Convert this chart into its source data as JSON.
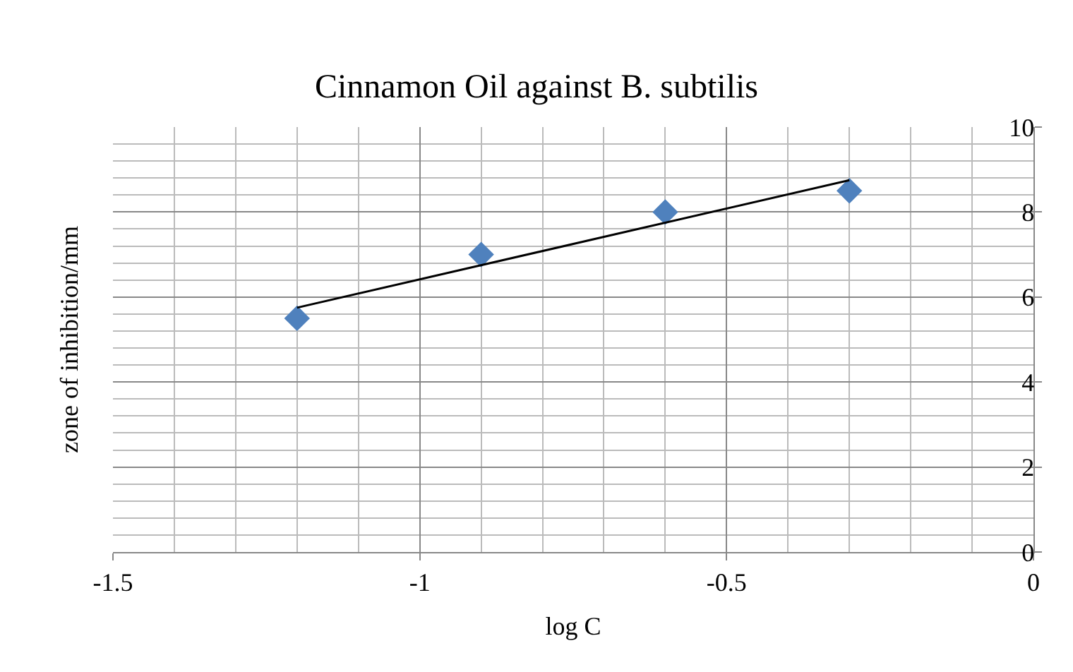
{
  "chart_data": {
    "type": "scatter",
    "title": "Cinnamon Oil against B. subtilis",
    "xlabel": "log C",
    "ylabel": "zone of inhibition/mm",
    "x": [
      -1.2,
      -0.9,
      -0.6,
      -0.3
    ],
    "series": [
      {
        "color": "#4f81bd",
        "values": [
          5.5,
          7,
          8,
          8.5
        ],
        "marker": "diamond"
      },
      {
        "type": "line",
        "color": "#000000",
        "x": [
          -1.2,
          -0.3
        ],
        "values": [
          5.75,
          8.75
        ],
        "marker": "none",
        "line_style": "solid"
      }
    ],
    "xlim": [
      -1.5,
      0
    ],
    "xticks": [
      -1.5,
      -1,
      -0.5,
      0
    ],
    "ylim": [
      0,
      10
    ],
    "yticks": [
      0,
      2,
      4,
      6,
      8,
      10
    ],
    "grid": true
  }
}
